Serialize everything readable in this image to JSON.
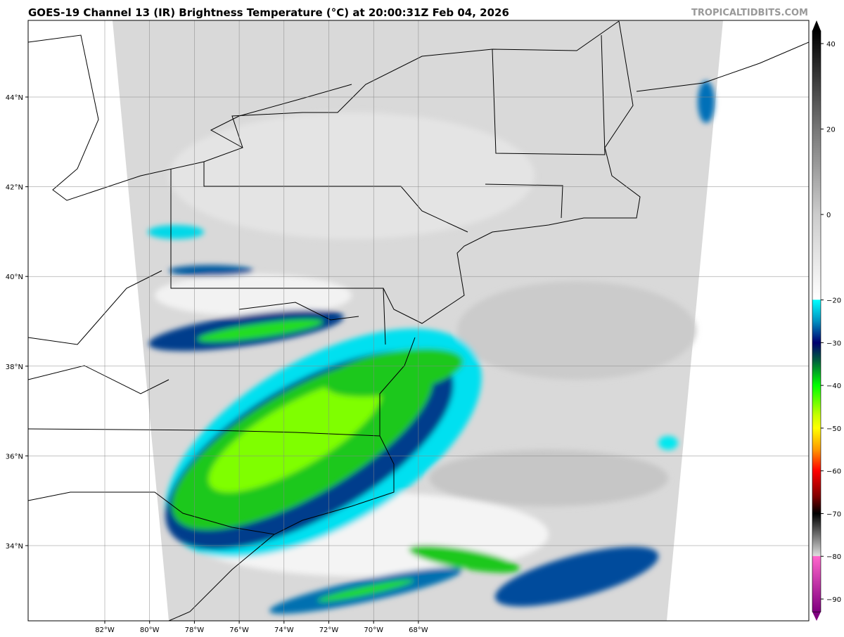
{
  "header": {
    "title": "GOES-19 Channel 13 (IR) Brightness Temperature (°C) at 20:00:31Z Feb 04, 2026",
    "credit": "TROPICALTIDBITS.COM"
  },
  "map": {
    "projection": "equirectangular",
    "grid": true,
    "lon_ticks": [
      {
        "value": -82,
        "label": "82°W"
      },
      {
        "value": -80,
        "label": "80°W"
      },
      {
        "value": -78,
        "label": "78°W"
      },
      {
        "value": -76,
        "label": "76°W"
      },
      {
        "value": -74,
        "label": "74°W"
      },
      {
        "value": -72,
        "label": "72°W"
      },
      {
        "value": -70,
        "label": "70°W"
      },
      {
        "value": -68,
        "label": "68°W"
      }
    ],
    "lat_ticks": [
      {
        "value": 44,
        "label": "44°N"
      },
      {
        "value": 42,
        "label": "42°N"
      },
      {
        "value": 40,
        "label": "40°N"
      },
      {
        "value": 38,
        "label": "38°N"
      },
      {
        "value": 36,
        "label": "36°N"
      },
      {
        "value": 34,
        "label": "34°N"
      }
    ]
  },
  "colorbar": {
    "units": "°C",
    "range": [
      -93,
      43
    ],
    "ticks": [
      40,
      20,
      0,
      -20,
      -30,
      -40,
      -50,
      -60,
      -70,
      -80,
      -90
    ],
    "stops": [
      {
        "value": 43,
        "color": "#000000"
      },
      {
        "value": 20,
        "color": "#777777"
      },
      {
        "value": 0,
        "color": "#cccccc"
      },
      {
        "value": -19.9,
        "color": "#ffffff"
      },
      {
        "value": -20,
        "color": "#00ffff"
      },
      {
        "value": -25,
        "color": "#0090c0"
      },
      {
        "value": -30,
        "color": "#000070"
      },
      {
        "value": -34,
        "color": "#005a40"
      },
      {
        "value": -40,
        "color": "#00ff00"
      },
      {
        "value": -47,
        "color": "#c8ff00"
      },
      {
        "value": -50,
        "color": "#ffff00"
      },
      {
        "value": -55,
        "color": "#ff9900"
      },
      {
        "value": -60,
        "color": "#ff0000"
      },
      {
        "value": -66,
        "color": "#800000"
      },
      {
        "value": -70,
        "color": "#000000"
      },
      {
        "value": -79.9,
        "color": "#dddddd"
      },
      {
        "value": -80,
        "color": "#ff66cc"
      },
      {
        "value": -93,
        "color": "#800080"
      }
    ]
  }
}
